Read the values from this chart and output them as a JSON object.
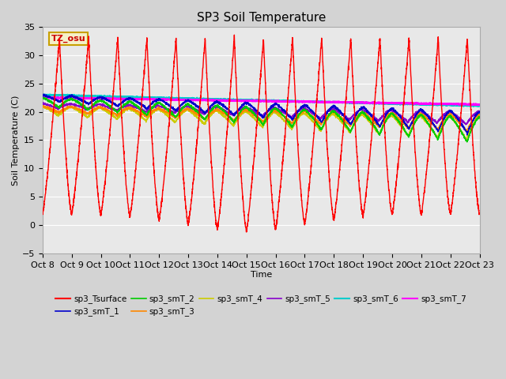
{
  "title": "SP3 Soil Temperature",
  "xlabel": "Time",
  "ylabel": "Soil Temperature (C)",
  "ylim": [
    -5,
    35
  ],
  "xlim": [
    0,
    360
  ],
  "background_color": "#d3d3d3",
  "plot_bg_color": "#e8e8e8",
  "annotation_text": "TZ_osu",
  "annotation_bg": "#f5f0c8",
  "annotation_border": "#c8a000",
  "xtick_labels": [
    "Oct 8",
    "Oct 9",
    "Oct 10",
    "Oct 11",
    "Oct 12",
    "Oct 13",
    "Oct 14",
    "Oct 15",
    "Oct 16",
    "Oct 17",
    "Oct 18",
    "Oct 19",
    "Oct 20",
    "Oct 21",
    "Oct 22",
    "Oct 23"
  ],
  "series": {
    "sp3_Tsurface": {
      "color": "#ff0000",
      "lw": 1.0
    },
    "sp3_smT_1": {
      "color": "#0000cc",
      "lw": 1.0
    },
    "sp3_smT_2": {
      "color": "#00cc00",
      "lw": 1.0
    },
    "sp3_smT_3": {
      "color": "#ff8800",
      "lw": 1.0
    },
    "sp3_smT_4": {
      "color": "#cccc00",
      "lw": 1.0
    },
    "sp3_smT_5": {
      "color": "#8800cc",
      "lw": 1.0
    },
    "sp3_smT_6": {
      "color": "#00cccc",
      "lw": 1.5
    },
    "sp3_smT_7": {
      "color": "#ff00ff",
      "lw": 1.5
    }
  }
}
